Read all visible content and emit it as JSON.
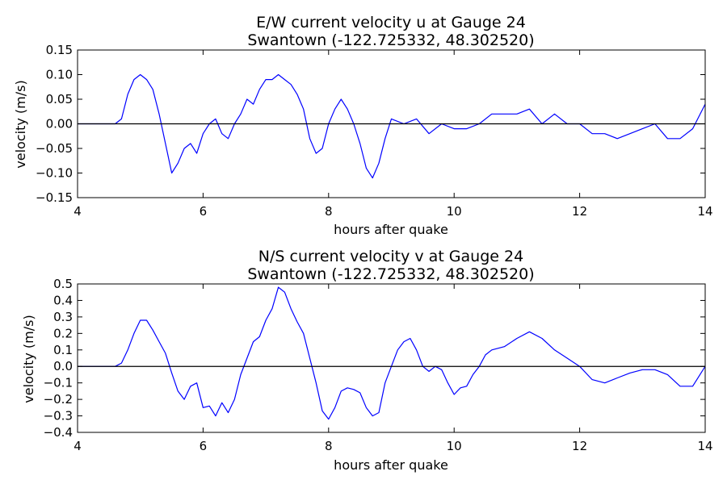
{
  "colors": {
    "series": "#0000ff",
    "zero_line": "#000000",
    "background": "#ffffff"
  },
  "chart_data": [
    {
      "type": "line",
      "title": "E/W current velocity u at Gauge 24\nSwantown  (-122.725332, 48.302520)",
      "xlabel": "hours after quake",
      "ylabel": "velocity (m/s)",
      "xlim": [
        4,
        14
      ],
      "ylim": [
        -0.15,
        0.15
      ],
      "xticks": [
        4,
        6,
        8,
        10,
        12,
        14
      ],
      "xtick_labels": [
        "4",
        "6",
        "8",
        "10",
        "12",
        "14"
      ],
      "yticks": [
        -0.15,
        -0.1,
        -0.05,
        0.0,
        0.05,
        0.1,
        0.15
      ],
      "ytick_labels": [
        "−0.15",
        "−0.10",
        "−0.05",
        "0.00",
        "0.05",
        "0.10",
        "0.15"
      ],
      "grid": false,
      "reference_line_y": 0,
      "series": [
        {
          "x": [
            4.0,
            4.2,
            4.4,
            4.6,
            4.7,
            4.8,
            4.9,
            5.0,
            5.1,
            5.2,
            5.3,
            5.4,
            5.5,
            5.6,
            5.7,
            5.8,
            5.9,
            6.0,
            6.1,
            6.2,
            6.3,
            6.4,
            6.5,
            6.6,
            6.7,
            6.8,
            6.9,
            7.0,
            7.1,
            7.2,
            7.3,
            7.4,
            7.5,
            7.6,
            7.7,
            7.8,
            7.9,
            8.0,
            8.1,
            8.2,
            8.3,
            8.4,
            8.5,
            8.6,
            8.7,
            8.8,
            8.9,
            9.0,
            9.2,
            9.4,
            9.6,
            9.8,
            10.0,
            10.2,
            10.4,
            10.6,
            10.8,
            11.0,
            11.2,
            11.4,
            11.6,
            11.8,
            12.0,
            12.2,
            12.4,
            12.6,
            12.8,
            13.0,
            13.2,
            13.4,
            13.6,
            13.8,
            14.0
          ],
          "y": [
            0.0,
            0.0,
            0.0,
            0.0,
            0.01,
            0.06,
            0.09,
            0.1,
            0.09,
            0.07,
            0.02,
            -0.04,
            -0.1,
            -0.08,
            -0.05,
            -0.04,
            -0.06,
            -0.02,
            0.0,
            0.01,
            -0.02,
            -0.03,
            0.0,
            0.02,
            0.05,
            0.04,
            0.07,
            0.09,
            0.09,
            0.1,
            0.09,
            0.08,
            0.06,
            0.03,
            -0.03,
            -0.06,
            -0.05,
            0.0,
            0.03,
            0.05,
            0.03,
            0.0,
            -0.04,
            -0.09,
            -0.11,
            -0.08,
            -0.03,
            0.01,
            0.0,
            0.01,
            -0.02,
            0.0,
            -0.01,
            -0.01,
            0.0,
            0.02,
            0.02,
            0.02,
            0.03,
            0.0,
            0.02,
            0.0,
            0.0,
            -0.02,
            -0.02,
            -0.03,
            -0.02,
            -0.01,
            0.0,
            -0.03,
            -0.03,
            -0.01,
            0.04
          ]
        }
      ]
    },
    {
      "type": "line",
      "title": "N/S current velocity v at Gauge 24\nSwantown  (-122.725332, 48.302520)",
      "xlabel": "hours after quake",
      "ylabel": "velocity (m/s)",
      "xlim": [
        4,
        14
      ],
      "ylim": [
        -0.4,
        0.5
      ],
      "xticks": [
        4,
        6,
        8,
        10,
        12,
        14
      ],
      "xtick_labels": [
        "4",
        "6",
        "8",
        "10",
        "12",
        "14"
      ],
      "yticks": [
        -0.4,
        -0.3,
        -0.2,
        -0.1,
        0.0,
        0.1,
        0.2,
        0.3,
        0.4,
        0.5
      ],
      "ytick_labels": [
        "−0.4",
        "−0.3",
        "−0.2",
        "−0.1",
        "0.0",
        "0.1",
        "0.2",
        "0.3",
        "0.4",
        "0.5"
      ],
      "grid": false,
      "reference_line_y": 0,
      "series": [
        {
          "x": [
            4.0,
            4.3,
            4.6,
            4.7,
            4.8,
            4.9,
            5.0,
            5.1,
            5.2,
            5.3,
            5.4,
            5.5,
            5.6,
            5.7,
            5.8,
            5.9,
            6.0,
            6.1,
            6.2,
            6.3,
            6.4,
            6.5,
            6.6,
            6.7,
            6.8,
            6.9,
            7.0,
            7.1,
            7.2,
            7.3,
            7.4,
            7.5,
            7.6,
            7.7,
            7.8,
            7.9,
            8.0,
            8.1,
            8.2,
            8.3,
            8.4,
            8.5,
            8.6,
            8.7,
            8.8,
            8.9,
            9.0,
            9.1,
            9.2,
            9.3,
            9.4,
            9.5,
            9.6,
            9.7,
            9.8,
            9.9,
            10.0,
            10.1,
            10.2,
            10.3,
            10.4,
            10.5,
            10.6,
            10.8,
            11.0,
            11.2,
            11.4,
            11.6,
            11.8,
            12.0,
            12.2,
            12.4,
            12.6,
            12.8,
            13.0,
            13.2,
            13.4,
            13.6,
            13.8,
            14.0
          ],
          "y": [
            0.0,
            0.0,
            0.0,
            0.02,
            0.1,
            0.2,
            0.28,
            0.28,
            0.22,
            0.15,
            0.08,
            -0.04,
            -0.15,
            -0.2,
            -0.12,
            -0.1,
            -0.25,
            -0.24,
            -0.3,
            -0.22,
            -0.28,
            -0.2,
            -0.05,
            0.05,
            0.15,
            0.18,
            0.28,
            0.35,
            0.48,
            0.45,
            0.35,
            0.27,
            0.2,
            0.05,
            -0.1,
            -0.27,
            -0.32,
            -0.25,
            -0.15,
            -0.13,
            -0.14,
            -0.16,
            -0.25,
            -0.3,
            -0.28,
            -0.1,
            0.0,
            0.1,
            0.15,
            0.17,
            0.1,
            0.0,
            -0.03,
            0.0,
            -0.02,
            -0.1,
            -0.17,
            -0.13,
            -0.12,
            -0.05,
            0.0,
            0.07,
            0.1,
            0.12,
            0.17,
            0.21,
            0.17,
            0.1,
            0.05,
            0.0,
            -0.08,
            -0.1,
            -0.07,
            -0.04,
            -0.02,
            -0.02,
            -0.05,
            -0.12,
            -0.12,
            0.0
          ]
        }
      ]
    }
  ]
}
